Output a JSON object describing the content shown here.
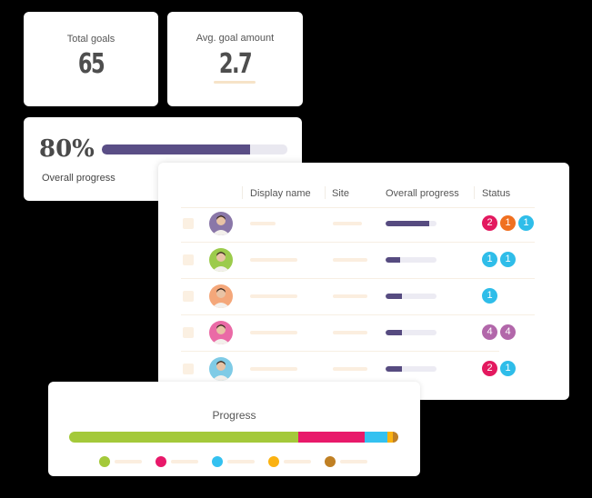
{
  "stats": {
    "total_goals": {
      "label": "Total goals",
      "value": "65"
    },
    "avg_goal_amount": {
      "label": "Avg. goal amount",
      "value": "2.7"
    }
  },
  "overall": {
    "percent_text": "80%",
    "percent": 80,
    "label": "Overall progress",
    "bar_color": "#5a4e86",
    "track_color": "#e9e8f0"
  },
  "table": {
    "headers": {
      "display_name": "Display name",
      "site": "Site",
      "overall_progress": "Overall progress",
      "status": "Status"
    },
    "rows": [
      {
        "avatar_bg": "#8a77a8",
        "progress": 85,
        "badges": [
          {
            "value": "2",
            "color": "#e3195f"
          },
          {
            "value": "1",
            "color": "#f07020"
          },
          {
            "value": "1",
            "color": "#2fbde9"
          }
        ]
      },
      {
        "avatar_bg": "#9ccb4c",
        "progress": 28,
        "badges": [
          {
            "value": "1",
            "color": "#2fbde9"
          },
          {
            "value": "1",
            "color": "#2fbde9"
          }
        ]
      },
      {
        "avatar_bg": "#f4a77a",
        "progress": 33,
        "badges": [
          {
            "value": "1",
            "color": "#2fbde9"
          }
        ]
      },
      {
        "avatar_bg": "#ea6aa6",
        "progress": 33,
        "badges": [
          {
            "value": "4",
            "color": "#b267aa"
          },
          {
            "value": "4",
            "color": "#b267aa"
          }
        ]
      },
      {
        "avatar_bg": "#7fcbe6",
        "progress": 33,
        "badges": [
          {
            "value": "2",
            "color": "#e3195f"
          },
          {
            "value": "1",
            "color": "#2fbde9"
          }
        ]
      }
    ]
  },
  "progress": {
    "title": "Progress",
    "segments": [
      {
        "color": "#a4c93a",
        "value": 69.6
      },
      {
        "color": "#e8196a",
        "value": 20.2
      },
      {
        "color": "#34c1f0",
        "value": 6.9
      },
      {
        "color": "#fbb211",
        "value": 1.7
      },
      {
        "color": "#c08024",
        "value": 1.6
      }
    ],
    "legend_colors": [
      "#a4c93a",
      "#e8196a",
      "#34c1f0",
      "#fbb211",
      "#c08024"
    ]
  }
}
